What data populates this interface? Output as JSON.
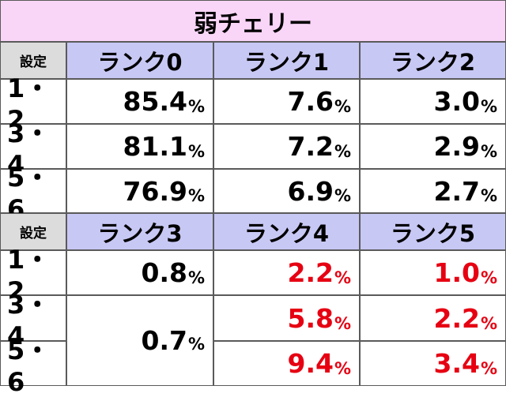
{
  "title": "弱チェリー",
  "setting_label": "設定",
  "percent": "%",
  "upper": {
    "columns": [
      "ランク0",
      "ランク1",
      "ランク2"
    ],
    "rows": [
      {
        "setting": "1・2",
        "values": [
          "85.4",
          "7.6",
          "3.0"
        ]
      },
      {
        "setting": "3・4",
        "values": [
          "81.1",
          "7.2",
          "2.9"
        ]
      },
      {
        "setting": "5・6",
        "values": [
          "76.9",
          "6.9",
          "2.7"
        ]
      }
    ]
  },
  "lower": {
    "columns": [
      "ランク3",
      "ランク4",
      "ランク5"
    ],
    "rows": [
      {
        "setting": "1・2",
        "values": [
          "0.8",
          "2.2",
          "1.0"
        ]
      },
      {
        "setting": "3・4",
        "values": [
          "0.7",
          "5.8",
          "2.2"
        ]
      },
      {
        "setting": "5・6",
        "values": [
          "",
          "9.4",
          "3.4"
        ]
      }
    ]
  },
  "colors": {
    "title_bg": "#f9d5f7",
    "header_bg": "#c8c8f5",
    "setting_bg": "#dcdcdc",
    "highlight": "#e60012"
  }
}
